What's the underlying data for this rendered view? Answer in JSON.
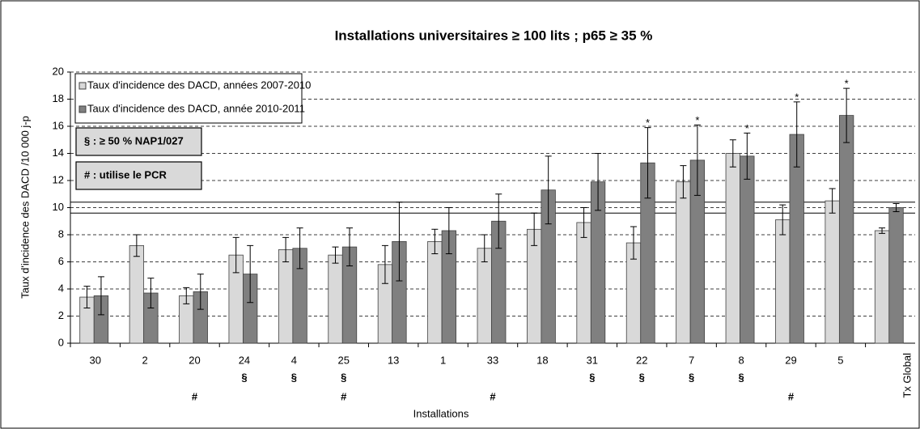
{
  "chart_data": {
    "type": "bar",
    "title": "Installations universitaires ≥ 100 lits ; p65 ≥ 35 %",
    "y_label": "Taux d'incidence des DACD /10 000 j-p",
    "x_label": "Installations",
    "categories": [
      "30",
      "2",
      "20",
      "24",
      "4",
      "25",
      "13",
      "1",
      "33",
      "18",
      "31",
      "22",
      "7",
      "8",
      "29",
      "5",
      "Tx Global"
    ],
    "series": [
      {
        "name": "Taux d'incidence des DACD, années 2007-2010",
        "color": "#d9d9d9",
        "values": [
          3.4,
          7.2,
          3.5,
          6.5,
          6.9,
          6.5,
          5.8,
          7.5,
          7.0,
          8.4,
          8.9,
          7.4,
          11.9,
          14.0,
          9.1,
          10.5,
          8.3
        ],
        "errors": [
          0.8,
          0.8,
          0.6,
          1.3,
          0.9,
          0.6,
          1.4,
          0.9,
          1.0,
          1.2,
          1.1,
          1.2,
          1.2,
          1.0,
          1.1,
          0.9,
          0.2
        ]
      },
      {
        "name": "Taux d'incidence des DACD, année 2010-2011",
        "color": "#808080",
        "values": [
          3.5,
          3.7,
          3.8,
          5.1,
          7.0,
          7.1,
          7.5,
          8.3,
          9.0,
          11.3,
          11.9,
          13.3,
          13.5,
          13.8,
          15.4,
          16.8,
          10.0
        ],
        "errors": [
          1.4,
          1.1,
          1.3,
          2.1,
          1.5,
          1.4,
          2.9,
          1.7,
          2.0,
          2.5,
          2.1,
          2.6,
          2.6,
          1.7,
          2.4,
          2.0,
          0.3
        ]
      }
    ],
    "stars": [
      null,
      null,
      null,
      null,
      null,
      null,
      null,
      null,
      null,
      null,
      null,
      "*",
      "*",
      "*",
      "*",
      "*",
      null
    ],
    "section_marks": [
      null,
      null,
      null,
      "§",
      "§",
      "§",
      null,
      null,
      null,
      null,
      "§",
      "§",
      "§",
      "§",
      null,
      null,
      null
    ],
    "hash_marks": [
      null,
      null,
      "#",
      null,
      null,
      "#",
      null,
      null,
      "#",
      null,
      null,
      null,
      null,
      null,
      "#",
      null,
      null
    ],
    "notes": [
      "§ : ≥ 50 % NAP1/027",
      "# : utilise le PCR"
    ],
    "reference_lines": [
      9.6,
      10.4
    ],
    "ylim": [
      0,
      20
    ],
    "yticks": [
      0,
      2,
      4,
      6,
      8,
      10,
      12,
      14,
      16,
      18,
      20
    ],
    "grid": true
  }
}
